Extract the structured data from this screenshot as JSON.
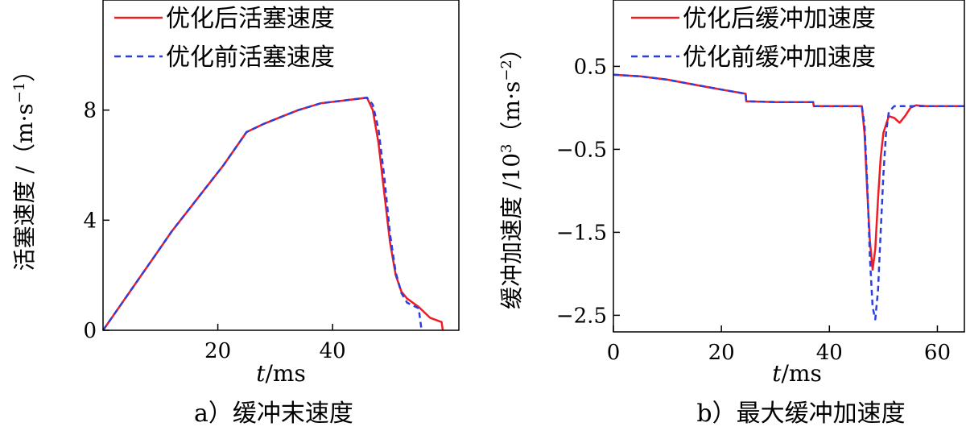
{
  "figure": {
    "captions": [
      "a）缓冲末速度",
      "b）最大缓冲加速度"
    ]
  },
  "chart_data": [
    {
      "type": "line",
      "xlabel_var": "t",
      "xlabel_unit": "/ms",
      "ylabel": "活塞速度 /（m·s",
      "ylabel_sup": "−1",
      "ylabel_close": "）",
      "xlim": [
        0,
        62
      ],
      "ylim": [
        0,
        12
      ],
      "xticks": [
        20,
        40
      ],
      "yticks": [
        0,
        4,
        8
      ],
      "xtick_labels": [
        "20",
        "40"
      ],
      "ytick_labels": [
        "0",
        "4",
        "8"
      ],
      "legend_position": "top-right",
      "series": [
        {
          "name": "优化后活塞速度",
          "color": "#ee1c25",
          "dash": "solid",
          "points": [
            [
              0,
              0
            ],
            [
              3,
              0.9
            ],
            [
              6,
              1.8
            ],
            [
              9,
              2.7
            ],
            [
              12,
              3.6
            ],
            [
              15,
              4.4
            ],
            [
              18,
              5.2
            ],
            [
              21,
              6.0
            ],
            [
              23,
              6.6
            ],
            [
              25,
              7.2
            ],
            [
              28,
              7.5
            ],
            [
              31,
              7.75
            ],
            [
              34,
              8.0
            ],
            [
              38,
              8.25
            ],
            [
              42,
              8.35
            ],
            [
              46,
              8.45
            ],
            [
              47,
              8.0
            ],
            [
              48,
              6.8
            ],
            [
              49,
              5.0
            ],
            [
              50,
              3.2
            ],
            [
              51,
              2.0
            ],
            [
              52,
              1.4
            ],
            [
              53,
              1.15
            ],
            [
              55,
              0.85
            ],
            [
              57,
              0.45
            ],
            [
              59,
              0.3
            ],
            [
              59.2,
              0
            ]
          ]
        },
        {
          "name": "优化前活塞速度",
          "color": "#2b3fdf",
          "dash": "dashed",
          "points": [
            [
              0,
              0
            ],
            [
              3,
              0.9
            ],
            [
              6,
              1.8
            ],
            [
              9,
              2.7
            ],
            [
              12,
              3.6
            ],
            [
              15,
              4.4
            ],
            [
              18,
              5.2
            ],
            [
              21,
              6.0
            ],
            [
              23,
              6.6
            ],
            [
              25,
              7.2
            ],
            [
              28,
              7.5
            ],
            [
              31,
              7.75
            ],
            [
              34,
              8.0
            ],
            [
              38,
              8.25
            ],
            [
              42,
              8.35
            ],
            [
              46,
              8.45
            ],
            [
              47,
              8.2
            ],
            [
              48,
              7.3
            ],
            [
              49,
              5.6
            ],
            [
              50,
              3.5
            ],
            [
              51,
              2.1
            ],
            [
              52,
              1.35
            ],
            [
              53,
              1.0
            ],
            [
              55,
              0.8
            ],
            [
              55.5,
              0
            ]
          ]
        }
      ]
    },
    {
      "type": "line",
      "xlabel_var": "t",
      "xlabel_unit": "/ms",
      "ylabel": "缓冲加速度 /10",
      "ylabel_sup": "3",
      "ylabel_mid": "（m·s",
      "ylabel_sup2": "−2",
      "ylabel_close": "）",
      "xlim": [
        0,
        65
      ],
      "ylim": [
        -2.7,
        1.3
      ],
      "xticks": [
        0,
        20,
        40,
        60
      ],
      "yticks": [
        0.5,
        -0.5,
        -1.5,
        -2.5
      ],
      "xtick_labels": [
        "0",
        "20",
        "40",
        "60"
      ],
      "ytick_labels": [
        "0.5",
        "−0.5",
        "−1.5",
        "−2.5"
      ],
      "legend_position": "top-right",
      "series": [
        {
          "name": "优化后缓冲加速度",
          "color": "#ee1c25",
          "dash": "solid",
          "points": [
            [
              0,
              0.4
            ],
            [
              5,
              0.38
            ],
            [
              10,
              0.34
            ],
            [
              15,
              0.28
            ],
            [
              20,
              0.22
            ],
            [
              24.5,
              0.17
            ],
            [
              24.6,
              0.08
            ],
            [
              30,
              0.07
            ],
            [
              37,
              0.07
            ],
            [
              37.1,
              0.02
            ],
            [
              46,
              0.02
            ],
            [
              46.5,
              -0.3
            ],
            [
              47,
              -1.0
            ],
            [
              47.5,
              -1.6
            ],
            [
              48,
              -1.95
            ],
            [
              48.5,
              -1.7
            ],
            [
              49,
              -1.1
            ],
            [
              49.5,
              -0.6
            ],
            [
              50,
              -0.3
            ],
            [
              51,
              -0.1
            ],
            [
              52,
              -0.12
            ],
            [
              53,
              -0.18
            ],
            [
              54,
              -0.1
            ],
            [
              55,
              0.0
            ],
            [
              56,
              0.03
            ],
            [
              58,
              0.02
            ],
            [
              65,
              0.02
            ]
          ]
        },
        {
          "name": "优化前缓冲加速度",
          "color": "#2b3fdf",
          "dash": "dashed",
          "points": [
            [
              0,
              0.4
            ],
            [
              5,
              0.38
            ],
            [
              10,
              0.34
            ],
            [
              15,
              0.28
            ],
            [
              20,
              0.22
            ],
            [
              24.5,
              0.17
            ],
            [
              24.6,
              0.08
            ],
            [
              30,
              0.07
            ],
            [
              37,
              0.07
            ],
            [
              37.1,
              0.02
            ],
            [
              46,
              0.02
            ],
            [
              46.5,
              -0.2
            ],
            [
              47,
              -0.9
            ],
            [
              47.5,
              -1.8
            ],
            [
              48,
              -2.4
            ],
            [
              48.5,
              -2.55
            ],
            [
              49,
              -2.2
            ],
            [
              49.5,
              -1.5
            ],
            [
              50,
              -0.8
            ],
            [
              50.5,
              -0.3
            ],
            [
              51,
              -0.05
            ],
            [
              52,
              0.02
            ],
            [
              54,
              0.02
            ],
            [
              56,
              0.02
            ],
            [
              58,
              0.02
            ],
            [
              65,
              0.02
            ]
          ]
        }
      ]
    }
  ]
}
